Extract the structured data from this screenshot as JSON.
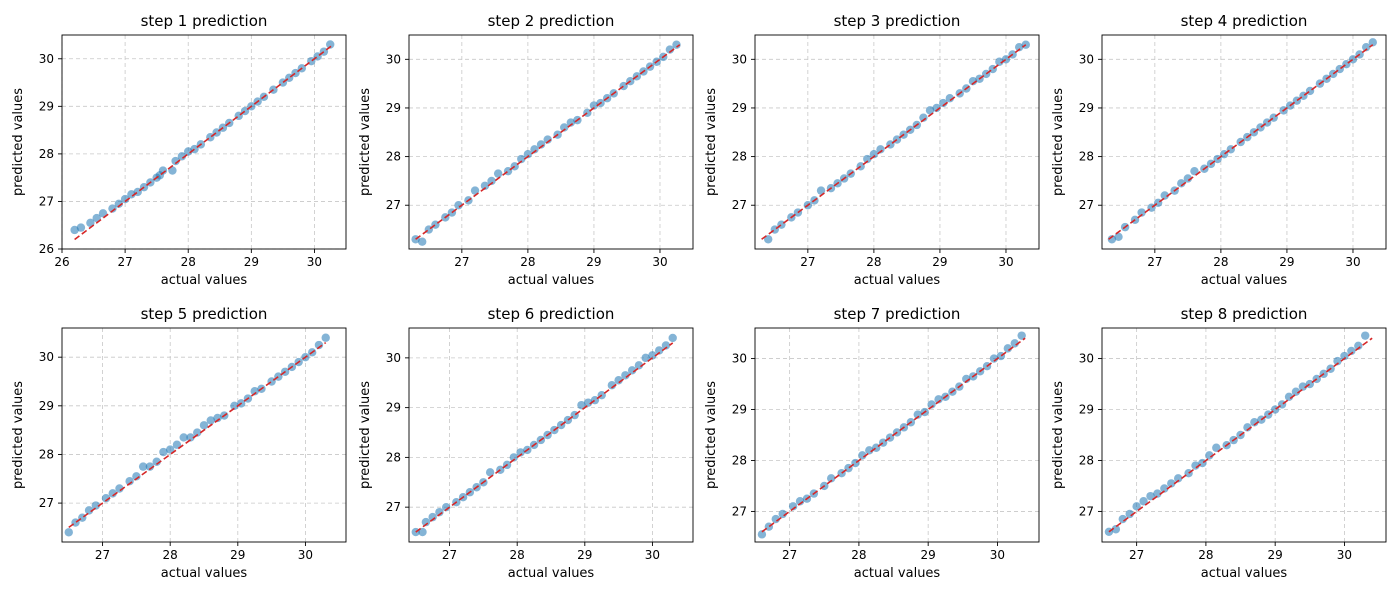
{
  "chart_data": [
    {
      "type": "scatter",
      "title": "step 1 prediction",
      "xlabel": "actual values",
      "ylabel": "predicted values",
      "xlim": [
        26.0,
        30.5
      ],
      "ylim": [
        26.0,
        30.5
      ],
      "xticks": [
        26,
        27,
        28,
        29,
        30
      ],
      "yticks": [
        26,
        27,
        28,
        29,
        30
      ],
      "grid": true,
      "reference_line": {
        "from": [
          26.2,
          26.2
        ],
        "to": [
          30.3,
          30.3
        ],
        "style": "dashed",
        "color": "#d62728"
      },
      "series": [
        {
          "x": [
            26.2,
            26.3,
            26.45,
            26.55,
            26.65,
            26.8,
            26.9,
            27.0,
            27.1,
            27.2,
            27.3,
            27.4,
            27.5,
            27.55,
            27.6,
            27.75,
            27.8,
            27.9,
            28.0,
            28.1,
            28.2,
            28.35,
            28.45,
            28.55,
            28.65,
            28.8,
            28.9,
            29.0,
            29.1,
            29.2,
            29.35,
            29.5,
            29.6,
            29.7,
            29.8,
            29.95,
            30.05,
            30.15,
            30.25
          ],
          "y": [
            26.4,
            26.45,
            26.55,
            26.65,
            26.75,
            26.85,
            26.95,
            27.05,
            27.15,
            27.2,
            27.3,
            27.4,
            27.5,
            27.55,
            27.65,
            27.65,
            27.85,
            27.95,
            28.05,
            28.1,
            28.2,
            28.35,
            28.45,
            28.55,
            28.65,
            28.8,
            28.9,
            29.0,
            29.1,
            29.2,
            29.35,
            29.5,
            29.6,
            29.7,
            29.8,
            29.95,
            30.05,
            30.15,
            30.3
          ]
        }
      ]
    },
    {
      "type": "scatter",
      "title": "step 2 prediction",
      "xlabel": "actual values",
      "ylabel": "predicted values",
      "xlim": [
        26.2,
        30.5
      ],
      "ylim": [
        26.1,
        30.5
      ],
      "xticks": [
        27,
        28,
        29,
        30
      ],
      "yticks": [
        27,
        28,
        29,
        30
      ],
      "grid": true,
      "reference_line": {
        "from": [
          26.3,
          26.3
        ],
        "to": [
          30.3,
          30.3
        ],
        "style": "dashed",
        "color": "#d62728"
      },
      "series": [
        {
          "x": [
            26.3,
            26.4,
            26.5,
            26.6,
            26.75,
            26.85,
            26.95,
            27.1,
            27.2,
            27.35,
            27.45,
            27.55,
            27.7,
            27.8,
            27.9,
            28.0,
            28.1,
            28.2,
            28.3,
            28.45,
            28.55,
            28.65,
            28.75,
            28.9,
            29.0,
            29.1,
            29.2,
            29.3,
            29.45,
            29.55,
            29.65,
            29.75,
            29.85,
            29.95,
            30.05,
            30.15,
            30.25
          ],
          "y": [
            26.3,
            26.25,
            26.5,
            26.6,
            26.75,
            26.85,
            27.0,
            27.1,
            27.3,
            27.4,
            27.5,
            27.65,
            27.7,
            27.8,
            27.95,
            28.05,
            28.15,
            28.25,
            28.35,
            28.45,
            28.6,
            28.7,
            28.75,
            28.9,
            29.05,
            29.1,
            29.2,
            29.3,
            29.45,
            29.55,
            29.65,
            29.75,
            29.85,
            29.95,
            30.05,
            30.2,
            30.3
          ]
        }
      ]
    },
    {
      "type": "scatter",
      "title": "step 3 prediction",
      "xlabel": "actual values",
      "ylabel": "predicted values",
      "xlim": [
        26.2,
        30.5
      ],
      "ylim": [
        26.1,
        30.5
      ],
      "xticks": [
        27,
        28,
        29,
        30
      ],
      "yticks": [
        27,
        28,
        29,
        30
      ],
      "grid": true,
      "reference_line": {
        "from": [
          26.3,
          26.3
        ],
        "to": [
          30.3,
          30.3
        ],
        "style": "dashed",
        "color": "#d62728"
      },
      "series": [
        {
          "x": [
            26.4,
            26.5,
            26.6,
            26.75,
            26.85,
            27.0,
            27.1,
            27.2,
            27.35,
            27.45,
            27.55,
            27.65,
            27.8,
            27.9,
            28.0,
            28.1,
            28.25,
            28.35,
            28.45,
            28.55,
            28.65,
            28.75,
            28.85,
            28.95,
            29.05,
            29.15,
            29.3,
            29.4,
            29.5,
            29.6,
            29.7,
            29.8,
            29.9,
            30.0,
            30.1,
            30.2,
            30.3
          ],
          "y": [
            26.3,
            26.5,
            26.6,
            26.75,
            26.85,
            27.0,
            27.1,
            27.3,
            27.35,
            27.45,
            27.55,
            27.65,
            27.8,
            27.95,
            28.05,
            28.15,
            28.25,
            28.35,
            28.45,
            28.55,
            28.65,
            28.8,
            28.95,
            29.0,
            29.1,
            29.2,
            29.3,
            29.4,
            29.55,
            29.6,
            29.7,
            29.8,
            29.95,
            30.0,
            30.1,
            30.25,
            30.3
          ]
        }
      ]
    },
    {
      "type": "scatter",
      "title": "step 4 prediction",
      "xlabel": "actual values",
      "ylabel": "predicted values",
      "xlim": [
        26.2,
        30.5
      ],
      "ylim": [
        26.1,
        30.5
      ],
      "xticks": [
        27,
        28,
        29,
        30
      ],
      "yticks": [
        27,
        28,
        29,
        30
      ],
      "grid": true,
      "reference_line": {
        "from": [
          26.3,
          26.3
        ],
        "to": [
          30.3,
          30.3
        ],
        "style": "dashed",
        "color": "#d62728"
      },
      "series": [
        {
          "x": [
            26.35,
            26.45,
            26.55,
            26.7,
            26.8,
            26.95,
            27.05,
            27.15,
            27.3,
            27.4,
            27.5,
            27.6,
            27.75,
            27.85,
            27.95,
            28.05,
            28.15,
            28.3,
            28.4,
            28.5,
            28.6,
            28.7,
            28.8,
            28.95,
            29.05,
            29.15,
            29.25,
            29.35,
            29.5,
            29.6,
            29.7,
            29.8,
            29.9,
            30.0,
            30.1,
            30.2,
            30.3
          ],
          "y": [
            26.3,
            26.35,
            26.55,
            26.7,
            26.85,
            26.95,
            27.05,
            27.2,
            27.3,
            27.45,
            27.55,
            27.7,
            27.75,
            27.85,
            27.95,
            28.05,
            28.15,
            28.3,
            28.4,
            28.5,
            28.6,
            28.7,
            28.8,
            28.95,
            29.05,
            29.15,
            29.25,
            29.35,
            29.5,
            29.6,
            29.7,
            29.8,
            29.9,
            30.0,
            30.1,
            30.25,
            30.35
          ]
        }
      ]
    },
    {
      "type": "scatter",
      "title": "step 5 prediction",
      "xlabel": "actual values",
      "ylabel": "predicted values",
      "xlim": [
        26.4,
        30.6
      ],
      "ylim": [
        26.2,
        30.6
      ],
      "xticks": [
        27,
        28,
        29,
        30
      ],
      "yticks": [
        27,
        28,
        29,
        30
      ],
      "grid": true,
      "reference_line": {
        "from": [
          26.5,
          26.5
        ],
        "to": [
          30.3,
          30.3
        ],
        "style": "dashed",
        "color": "#d62728"
      },
      "series": [
        {
          "x": [
            26.5,
            26.6,
            26.7,
            26.8,
            26.9,
            27.05,
            27.15,
            27.25,
            27.4,
            27.5,
            27.6,
            27.7,
            27.8,
            27.9,
            28.0,
            28.1,
            28.2,
            28.3,
            28.4,
            28.5,
            28.6,
            28.7,
            28.8,
            28.95,
            29.05,
            29.15,
            29.25,
            29.35,
            29.5,
            29.6,
            29.7,
            29.8,
            29.9,
            30.0,
            30.1,
            30.2,
            30.3
          ],
          "y": [
            26.4,
            26.6,
            26.7,
            26.85,
            26.95,
            27.1,
            27.2,
            27.3,
            27.45,
            27.55,
            27.75,
            27.75,
            27.85,
            28.05,
            28.1,
            28.2,
            28.35,
            28.35,
            28.45,
            28.6,
            28.7,
            28.75,
            28.8,
            29.0,
            29.05,
            29.15,
            29.3,
            29.35,
            29.5,
            29.6,
            29.7,
            29.8,
            29.9,
            30.0,
            30.1,
            30.25,
            30.4
          ]
        }
      ]
    },
    {
      "type": "scatter",
      "title": "step 6 prediction",
      "xlabel": "actual values",
      "ylabel": "predicted values",
      "xlim": [
        26.4,
        30.6
      ],
      "ylim": [
        26.3,
        30.6
      ],
      "xticks": [
        27,
        28,
        29,
        30
      ],
      "yticks": [
        27,
        28,
        29,
        30
      ],
      "grid": true,
      "reference_line": {
        "from": [
          26.5,
          26.5
        ],
        "to": [
          30.3,
          30.3
        ],
        "style": "dashed",
        "color": "#d62728"
      },
      "series": [
        {
          "x": [
            26.5,
            26.6,
            26.65,
            26.75,
            26.85,
            26.95,
            27.1,
            27.2,
            27.3,
            27.4,
            27.5,
            27.6,
            27.75,
            27.85,
            27.95,
            28.05,
            28.15,
            28.25,
            28.35,
            28.45,
            28.55,
            28.65,
            28.75,
            28.85,
            28.95,
            29.05,
            29.15,
            29.25,
            29.4,
            29.5,
            29.6,
            29.7,
            29.8,
            29.9,
            30.0,
            30.1,
            30.2,
            30.3
          ],
          "y": [
            26.5,
            26.5,
            26.7,
            26.8,
            26.9,
            27.0,
            27.1,
            27.2,
            27.3,
            27.4,
            27.5,
            27.7,
            27.75,
            27.85,
            28.0,
            28.1,
            28.15,
            28.25,
            28.35,
            28.45,
            28.55,
            28.65,
            28.75,
            28.85,
            29.05,
            29.1,
            29.15,
            29.25,
            29.45,
            29.55,
            29.65,
            29.75,
            29.85,
            30.0,
            30.05,
            30.15,
            30.25,
            30.4
          ]
        }
      ]
    },
    {
      "type": "scatter",
      "title": "step 7 prediction",
      "xlabel": "actual values",
      "ylabel": "predicted values",
      "xlim": [
        26.5,
        30.6
      ],
      "ylim": [
        26.4,
        30.6
      ],
      "xticks": [
        27,
        28,
        29,
        30
      ],
      "yticks": [
        27,
        28,
        29,
        30
      ],
      "grid": true,
      "reference_line": {
        "from": [
          26.6,
          26.6
        ],
        "to": [
          30.4,
          30.4
        ],
        "style": "dashed",
        "color": "#d62728"
      },
      "series": [
        {
          "x": [
            26.6,
            26.7,
            26.8,
            26.9,
            27.05,
            27.15,
            27.25,
            27.35,
            27.5,
            27.6,
            27.75,
            27.85,
            27.95,
            28.05,
            28.15,
            28.25,
            28.35,
            28.45,
            28.55,
            28.65,
            28.75,
            28.85,
            28.95,
            29.05,
            29.15,
            29.25,
            29.35,
            29.45,
            29.55,
            29.65,
            29.75,
            29.85,
            29.95,
            30.05,
            30.15,
            30.25,
            30.35
          ],
          "y": [
            26.55,
            26.7,
            26.85,
            26.95,
            27.1,
            27.2,
            27.25,
            27.35,
            27.5,
            27.65,
            27.75,
            27.85,
            27.95,
            28.1,
            28.2,
            28.25,
            28.35,
            28.45,
            28.55,
            28.65,
            28.75,
            28.9,
            28.95,
            29.1,
            29.2,
            29.25,
            29.35,
            29.45,
            29.6,
            29.65,
            29.75,
            29.85,
            30.0,
            30.05,
            30.2,
            30.3,
            30.45
          ]
        }
      ]
    },
    {
      "type": "scatter",
      "title": "step 8 prediction",
      "xlabel": "actual values",
      "ylabel": "predicted values",
      "xlim": [
        26.5,
        30.6
      ],
      "ylim": [
        26.4,
        30.6
      ],
      "xticks": [
        27,
        28,
        29,
        30
      ],
      "yticks": [
        27,
        28,
        29,
        30
      ],
      "grid": true,
      "reference_line": {
        "from": [
          26.6,
          26.6
        ],
        "to": [
          30.4,
          30.4
        ],
        "style": "dashed",
        "color": "#d62728"
      },
      "series": [
        {
          "x": [
            26.6,
            26.7,
            26.8,
            26.9,
            27.0,
            27.1,
            27.2,
            27.3,
            27.4,
            27.5,
            27.6,
            27.75,
            27.85,
            27.95,
            28.05,
            28.15,
            28.3,
            28.4,
            28.5,
            28.6,
            28.7,
            28.8,
            28.9,
            29.0,
            29.1,
            29.2,
            29.3,
            29.4,
            29.5,
            29.6,
            29.7,
            29.8,
            29.9,
            30.0,
            30.1,
            30.2,
            30.3
          ],
          "y": [
            26.6,
            26.65,
            26.85,
            26.95,
            27.1,
            27.2,
            27.3,
            27.35,
            27.45,
            27.55,
            27.65,
            27.75,
            27.9,
            27.95,
            28.1,
            28.25,
            28.3,
            28.4,
            28.5,
            28.65,
            28.75,
            28.8,
            28.9,
            29.0,
            29.1,
            29.25,
            29.35,
            29.45,
            29.5,
            29.6,
            29.7,
            29.8,
            29.95,
            30.05,
            30.15,
            30.25,
            30.45
          ]
        }
      ]
    }
  ],
  "colors": {
    "point": "#1f77b4",
    "line": "#d62728",
    "grid": "#c8c8c8"
  }
}
